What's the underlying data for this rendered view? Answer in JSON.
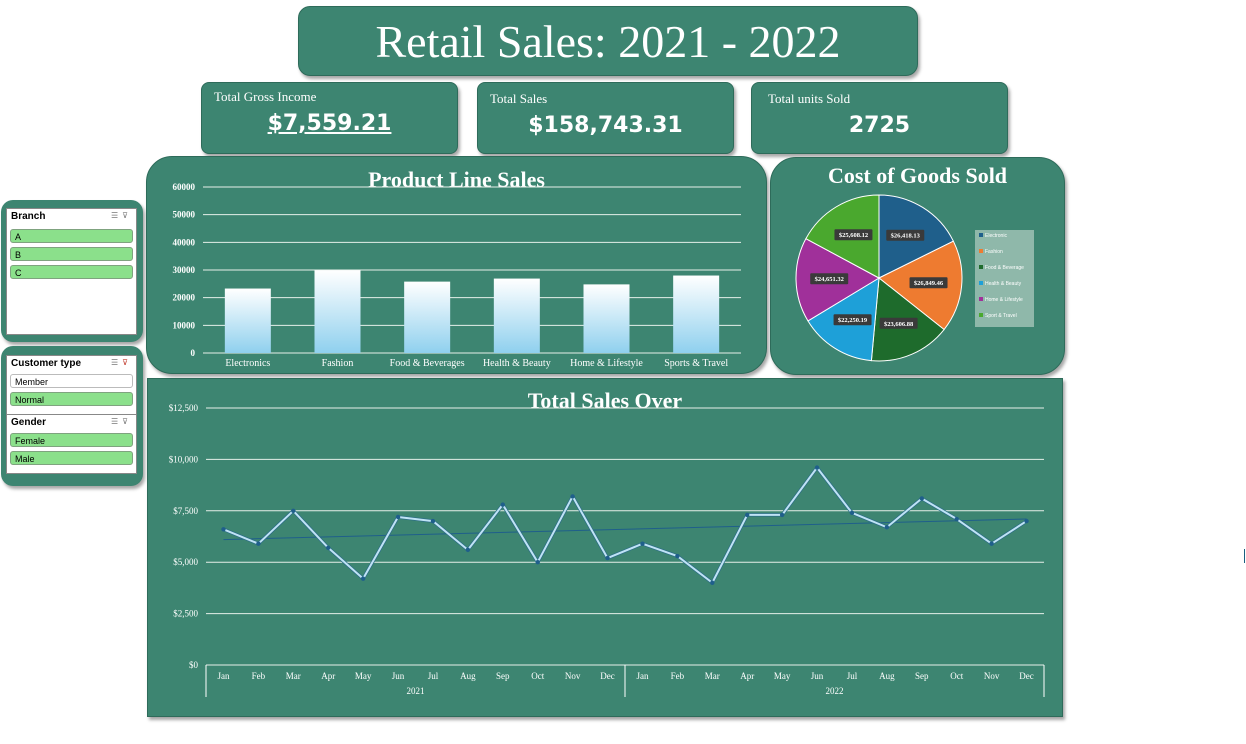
{
  "header": {
    "title": "Retail Sales: 2021 - 2022"
  },
  "kpis": [
    {
      "label": "Total Gross Income",
      "value": "$7,559.21"
    },
    {
      "label": "Total Sales",
      "value": "$158,743.31"
    },
    {
      "label": "Total units Sold",
      "value": "2725"
    }
  ],
  "slicers": {
    "branch": {
      "title": "Branch",
      "items": [
        "A",
        "B",
        "C"
      ]
    },
    "customer_type": {
      "title": "Customer type",
      "items": [
        "Member",
        "Normal"
      ]
    },
    "gender": {
      "title": "Gender",
      "items": [
        "Female",
        "Male"
      ]
    }
  },
  "chart_data": [
    {
      "type": "bar",
      "title": "Product Line Sales",
      "categories": [
        "Electronics",
        "Fashion",
        "Food & Beverages",
        "Health & Beauty",
        "Home & Lifestyle",
        "Sports & Travel"
      ],
      "values": [
        23300,
        29900,
        25800,
        26900,
        24800,
        28000
      ],
      "ylim": [
        0,
        60000
      ],
      "yticks": [
        "0",
        "10000",
        "20000",
        "30000",
        "40000",
        "50000",
        "60000"
      ],
      "grid": true,
      "colors": {
        "bar_top": "#ffffff",
        "bar_bottom": "#8fd0ee"
      }
    },
    {
      "type": "pie",
      "title": "Cost of Goods Sold",
      "labels": [
        "Electronic",
        "Fashion",
        "Food & Beverage",
        "Health & Beauty",
        "Home & Lifestyle",
        "Sport & Travel"
      ],
      "values": [
        26418.13,
        26849.46,
        23606.88,
        22250.19,
        24651.32,
        25608.12
      ],
      "value_labels": [
        "$26,418.13",
        "$26,849.46",
        "$23,606.88",
        "$22,250.19",
        "$24,651.32",
        "$25,608.12"
      ],
      "colors": [
        "#1f5f8b",
        "#ee7b30",
        "#1e6b2c",
        "#1ea0d8",
        "#a0309a",
        "#4aa82e"
      ],
      "legend": "right"
    },
    {
      "type": "line",
      "title": "Total Sales Over",
      "categories": [
        "Jan",
        "Feb",
        "Mar",
        "Apr",
        "May",
        "Jun",
        "Jul",
        "Aug",
        "Sep",
        "Oct",
        "Nov",
        "Dec",
        "Jan",
        "Feb",
        "Mar",
        "Apr",
        "May",
        "Jun",
        "Jul",
        "Aug",
        "Sep",
        "Oct",
        "Nov",
        "Dec"
      ],
      "groups": [
        {
          "label": "2021",
          "count": 12
        },
        {
          "label": "2022",
          "count": 12
        }
      ],
      "values": [
        6600,
        5900,
        7500,
        5700,
        4200,
        7200,
        7000,
        5600,
        7800,
        5000,
        8200,
        5200,
        5900,
        5300,
        4000,
        7300,
        7300,
        9600,
        7400,
        6700,
        8100,
        7100,
        5900,
        7000
      ],
      "trendline": [
        6100,
        7100
      ],
      "ylim": [
        0,
        12500
      ],
      "yticks": [
        "$0",
        "$2,500",
        "$5,000",
        "$7,500",
        "$10,000",
        "$12,500"
      ],
      "grid": true,
      "colors": {
        "line": "#bfe3f5",
        "marker": "#1f5f8b",
        "trend": "#1f5f8b"
      }
    }
  ]
}
